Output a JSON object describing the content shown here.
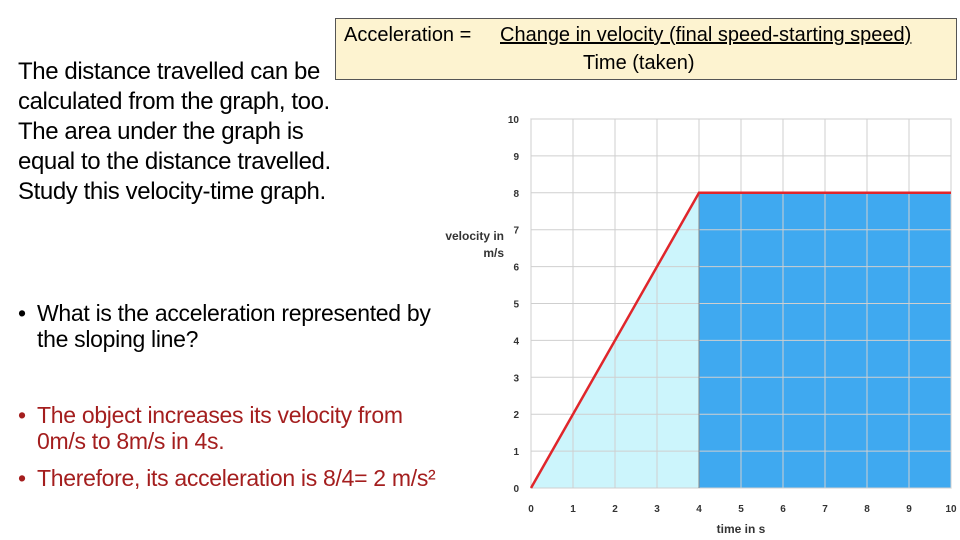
{
  "formula": {
    "lhs": "Acceleration =",
    "numerator": "Change in velocity (final speed-starting speed)",
    "denominator": "Time (taken)"
  },
  "intro_text": "The distance travelled can be calculated from the graph, too. The area under the graph is equal to the distance travelled. Study this velocity-time graph.",
  "question": "What is the acceleration represented by the sloping line?",
  "answers": [
    "The object increases its velocity from 0m/s to 8m/s in 4s.",
    "Therefore, its acceleration is 8/4= 2 m/s²"
  ],
  "colors": {
    "answer_text": "#a41e1e",
    "formula_box": "#fdf3d0",
    "triangle_fill": "#ccf5fc",
    "rectangle_fill": "#3fa9f0",
    "line": "#e0262b"
  },
  "chart_data": {
    "type": "line",
    "title": "",
    "xlabel": "time in s",
    "ylabel": "velocity in m/s",
    "x": [
      0,
      4,
      10
    ],
    "y": [
      0,
      8,
      8
    ],
    "xlim": [
      0,
      10
    ],
    "ylim": [
      0,
      10
    ],
    "xticks": [
      "0",
      "1",
      "2",
      "3",
      "4",
      "5",
      "6",
      "7",
      "8",
      "9",
      "10"
    ],
    "yticks": [
      "0",
      "1",
      "2",
      "3",
      "4",
      "5",
      "6",
      "7",
      "8",
      "9",
      "10"
    ],
    "grid": true,
    "shaded_regions": [
      {
        "shape": "triangle",
        "x_from": 0,
        "x_to": 4
      },
      {
        "shape": "rectangle",
        "x_from": 4,
        "x_to": 10
      }
    ]
  }
}
